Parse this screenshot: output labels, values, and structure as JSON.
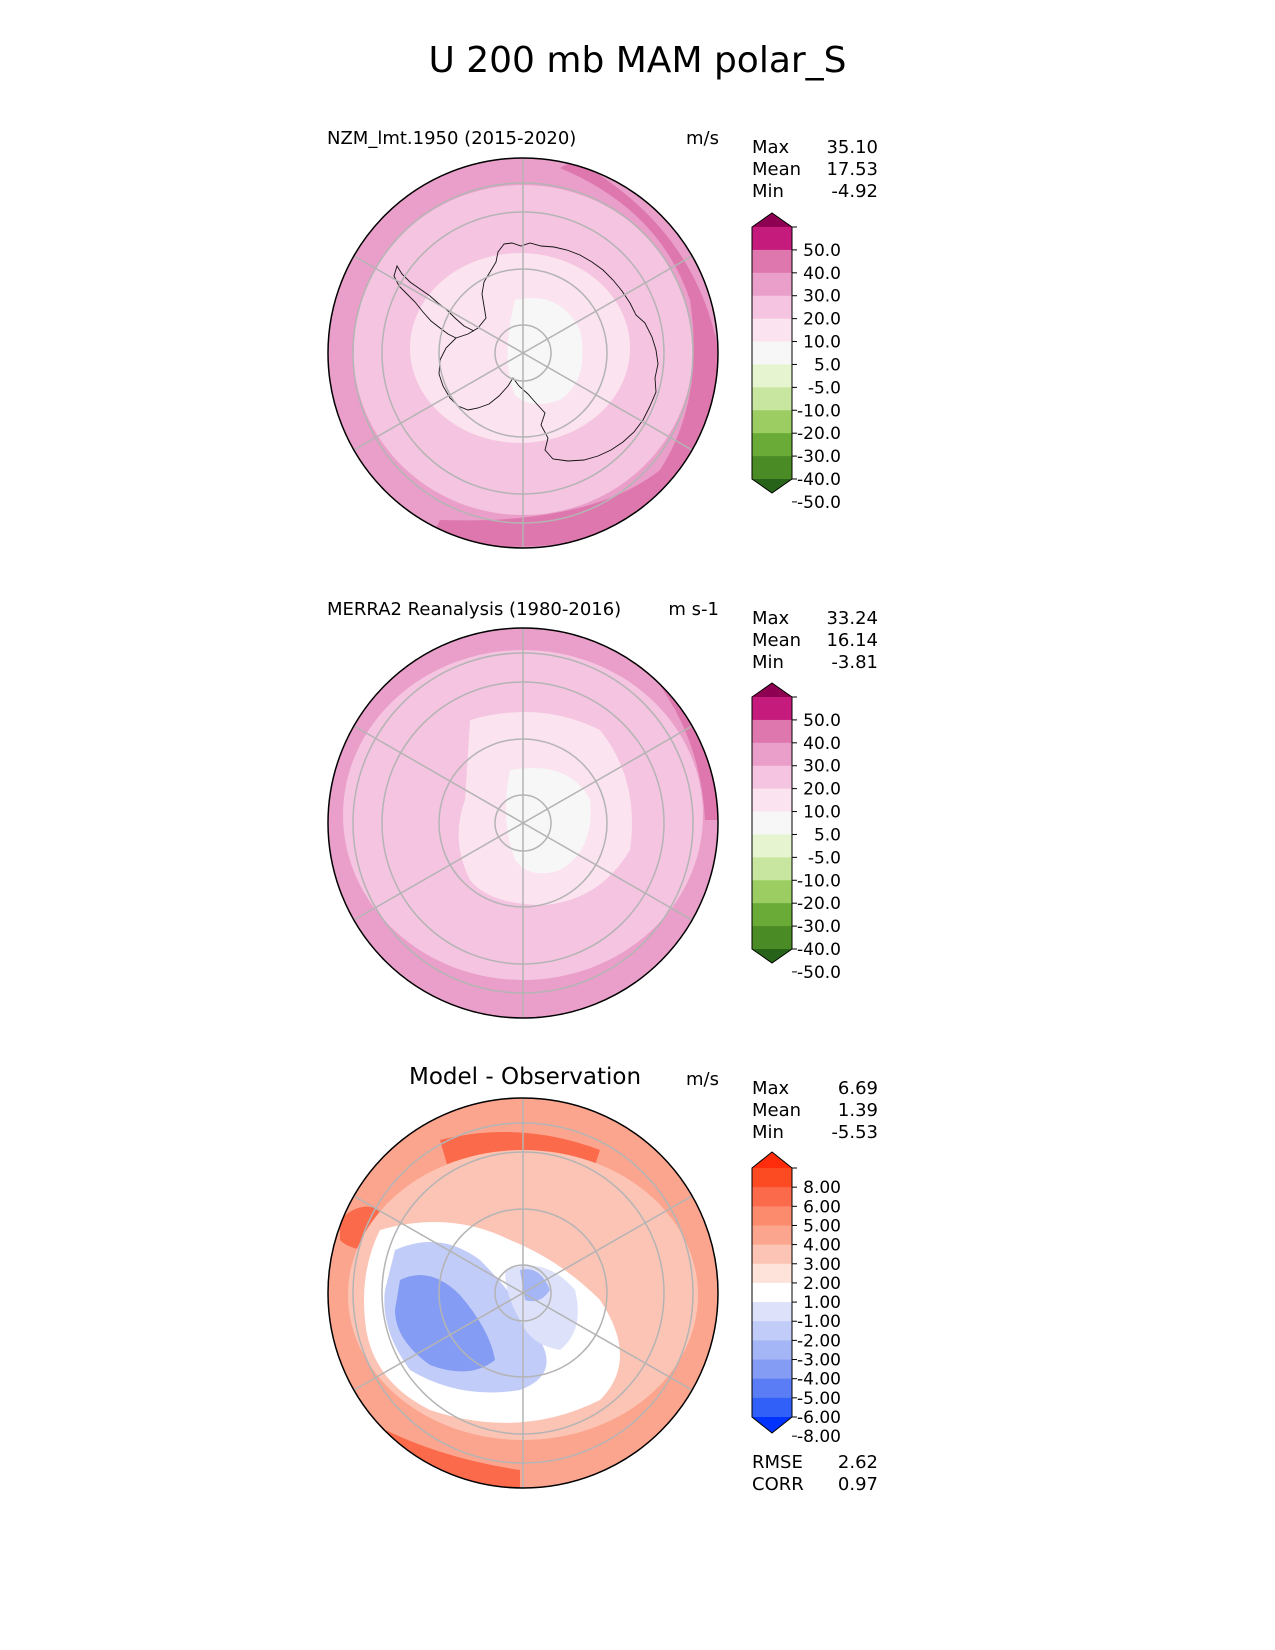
{
  "title": "U 200 mb MAM polar_S",
  "panels": [
    {
      "id": "model",
      "title": "NZM_lmt.1950 (2015-2020)",
      "units": "m/s",
      "stats": [
        {
          "label": "Max",
          "value": "35.10"
        },
        {
          "label": "Mean",
          "value": "17.53"
        },
        {
          "label": "Min",
          "value": "-4.92"
        }
      ]
    },
    {
      "id": "obs",
      "title": "MERRA2 Reanalysis (1980-2016)",
      "units": "m s-1",
      "stats": [
        {
          "label": "Max",
          "value": "33.24"
        },
        {
          "label": "Mean",
          "value": "16.14"
        },
        {
          "label": "Min",
          "value": "-3.81"
        }
      ]
    },
    {
      "id": "diff",
      "title": "Model - Observation",
      "units": "m/s",
      "stats": [
        {
          "label": "Max",
          "value": "6.69"
        },
        {
          "label": "Mean",
          "value": "1.39"
        },
        {
          "label": "Min",
          "value": "-5.53"
        }
      ],
      "metrics": [
        {
          "label": "RMSE",
          "value": "2.62"
        },
        {
          "label": "CORR",
          "value": "0.97"
        }
      ]
    }
  ],
  "chart_data": [
    {
      "type": "heatmap",
      "projection": "south-polar-stereographic",
      "title": "NZM_lmt.1950 (2015-2020)",
      "units": "m/s",
      "variable": "U 200 mb",
      "season": "MAM",
      "colorbar": {
        "levels": [
          "50.0",
          "40.0",
          "30.0",
          "20.0",
          "10.0",
          "5.0",
          "-5.0",
          "-10.0",
          "-20.0",
          "-30.0",
          "-40.0",
          "-50.0"
        ],
        "colors": [
          "#8e0152",
          "#c51b7d",
          "#de77ae",
          "#e99fc9",
          "#f5c4e0",
          "#fbe3ef",
          "#f7f7f7",
          "#e6f5d0",
          "#c8e6a0",
          "#9ccd62",
          "#6aaa36",
          "#4b8b25",
          "#276419"
        ],
        "extend": "both"
      },
      "zonal_bands": [
        {
          "colat_max": 12,
          "value": "-5 to 5"
        },
        {
          "colat_max": 25,
          "value": "5 to 10"
        },
        {
          "colat_max": 42,
          "value": "10 to 20"
        },
        {
          "colat_max": 58,
          "value": "20 to 30"
        },
        {
          "colat_max": 75,
          "value": "30 to 40"
        }
      ]
    },
    {
      "type": "heatmap",
      "projection": "south-polar-stereographic",
      "title": "MERRA2 Reanalysis (1980-2016)",
      "units": "m s-1",
      "variable": "U 200 mb",
      "season": "MAM",
      "colorbar": {
        "levels": [
          "50.0",
          "40.0",
          "30.0",
          "20.0",
          "10.0",
          "5.0",
          "-5.0",
          "-10.0",
          "-20.0",
          "-30.0",
          "-40.0",
          "-50.0"
        ],
        "colors": [
          "#8e0152",
          "#c51b7d",
          "#de77ae",
          "#e99fc9",
          "#f5c4e0",
          "#fbe3ef",
          "#f7f7f7",
          "#e6f5d0",
          "#c8e6a0",
          "#9ccd62",
          "#6aaa36",
          "#4b8b25",
          "#276419"
        ],
        "extend": "both"
      },
      "zonal_bands": [
        {
          "colat_max": 10,
          "value": "-5 to 5"
        },
        {
          "colat_max": 26,
          "value": "5 to 10"
        },
        {
          "colat_max": 50,
          "value": "10 to 20"
        },
        {
          "colat_max": 75,
          "value": "20 to 30"
        }
      ]
    },
    {
      "type": "heatmap",
      "projection": "south-polar-stereographic",
      "title": "Model - Observation",
      "units": "m/s",
      "colorbar": {
        "levels": [
          "8.00",
          "6.00",
          "5.00",
          "4.00",
          "3.00",
          "2.00",
          "1.00",
          "-1.00",
          "-2.00",
          "-3.00",
          "-4.00",
          "-5.00",
          "-6.00",
          "-8.00"
        ],
        "colors": [
          "#ff2d0b",
          "#fc4a22",
          "#fb6a4a",
          "#fc8b6e",
          "#fca58e",
          "#fcc4b4",
          "#fde3da",
          "#ffffff",
          "#dde2fa",
          "#c2ccf8",
          "#a5b6f6",
          "#849cf4",
          "#5a7cf5",
          "#3060f8",
          "#0033ff"
        ],
        "extend": "both"
      },
      "rmse": 2.62,
      "corr": 0.97
    }
  ]
}
